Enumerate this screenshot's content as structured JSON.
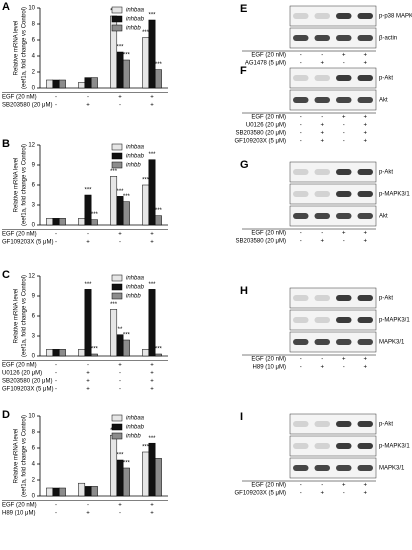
{
  "chart_data": [
    {
      "type": "bar",
      "panel": "A",
      "ylabel": [
        "Relative mRNA level",
        "(eef1a, fold change vs Control)"
      ],
      "ylim": [
        0,
        10
      ],
      "yticks": [
        0,
        2,
        4,
        6,
        8,
        10
      ],
      "series": [
        {
          "name": "inhbaa",
          "color": "#e6e6e6",
          "values": [
            1,
            0.7,
            9,
            6.3
          ],
          "significance": [
            null,
            null,
            "***",
            "***"
          ]
        },
        {
          "name": "inhbab",
          "color": "#111111",
          "values": [
            1,
            1.3,
            4.5,
            8.5
          ],
          "significance": [
            null,
            null,
            "***",
            "***"
          ]
        },
        {
          "name": "inhbb",
          "color": "#8c8c8c",
          "values": [
            1,
            1.3,
            3.5,
            2.3
          ],
          "significance": [
            null,
            null,
            "***",
            "***"
          ]
        }
      ],
      "treatments": [
        {
          "label": "EGF (20 nM)",
          "signs": [
            "-",
            "-",
            "+",
            "+"
          ]
        },
        {
          "label": "SB203580 (20 μM)",
          "signs": [
            "-",
            "+",
            "-",
            "+"
          ]
        }
      ]
    },
    {
      "type": "bar",
      "panel": "B",
      "ylabel": [
        "Relative mRNA level",
        "(eef1a, fold change vs Control)"
      ],
      "ylim": [
        0,
        12
      ],
      "yticks": [
        0,
        3,
        6,
        9,
        12
      ],
      "series": [
        {
          "name": "inhbaa",
          "color": "#e6e6e6",
          "values": [
            1,
            1,
            7.3,
            6
          ],
          "significance": [
            null,
            null,
            "***",
            "***"
          ]
        },
        {
          "name": "inhbab",
          "color": "#111111",
          "values": [
            1,
            4.5,
            4.3,
            9.8
          ],
          "significance": [
            null,
            "***",
            "***",
            "***"
          ]
        },
        {
          "name": "inhbb",
          "color": "#8c8c8c",
          "values": [
            1,
            0.8,
            3.5,
            1.4
          ],
          "significance": [
            null,
            "***",
            "***",
            "***"
          ]
        }
      ],
      "treatments": [
        {
          "label": "EGF (20 nM)",
          "signs": [
            "-",
            "-",
            "+",
            "+"
          ]
        },
        {
          "label": "GF109203X (5 μM)",
          "signs": [
            "-",
            "+",
            "-",
            "+"
          ]
        }
      ]
    },
    {
      "type": "bar",
      "panel": "C",
      "ylabel": [
        "Relative mRNA level",
        "(eef1a, fold change vs Control)"
      ],
      "ylim": [
        0,
        12
      ],
      "yticks": [
        0,
        3,
        6,
        9,
        12
      ],
      "series": [
        {
          "name": "inhbaa",
          "color": "#e6e6e6",
          "values": [
            1,
            1,
            7,
            1
          ],
          "significance": [
            null,
            null,
            "***",
            null
          ]
        },
        {
          "name": "inhbab",
          "color": "#111111",
          "values": [
            1,
            10,
            3.2,
            10
          ],
          "significance": [
            null,
            "***",
            "**",
            "***"
          ]
        },
        {
          "name": "inhbb",
          "color": "#8c8c8c",
          "values": [
            1,
            0.3,
            2.4,
            0.3
          ],
          "significance": [
            null,
            "***",
            "***",
            "***"
          ]
        }
      ],
      "treatments": [
        {
          "label": "EGF (20 nM)",
          "signs": [
            "-",
            "-",
            "+",
            "+"
          ]
        },
        {
          "label": "U0126 (20 μM)",
          "signs": [
            "-",
            "+",
            "-",
            "+"
          ]
        },
        {
          "label": "SB203580 (20 μM)",
          "signs": [
            "-",
            "+",
            "-",
            "+"
          ]
        },
        {
          "label": "GF109203X (5 μM)",
          "signs": [
            "-",
            "+",
            "-",
            "+"
          ]
        }
      ]
    },
    {
      "type": "bar",
      "panel": "D",
      "ylabel": [
        "Relative mRNA level",
        "(eef1a, fold change vs Control)"
      ],
      "ylim": [
        0,
        10
      ],
      "yticks": [
        0,
        2,
        4,
        6,
        8,
        10
      ],
      "series": [
        {
          "name": "inhbaa",
          "color": "#e6e6e6",
          "values": [
            1,
            1.6,
            7.6,
            5.5
          ],
          "significance": [
            null,
            null,
            "***",
            "***"
          ]
        },
        {
          "name": "inhbab",
          "color": "#111111",
          "values": [
            1,
            1.2,
            4.5,
            6.6
          ],
          "significance": [
            null,
            null,
            "***",
            "***"
          ]
        },
        {
          "name": "inhbb",
          "color": "#8c8c8c",
          "values": [
            1,
            1.2,
            3.5,
            4.7
          ],
          "significance": [
            null,
            null,
            "***",
            null
          ]
        }
      ],
      "treatments": [
        {
          "label": "EGF (20 nM)",
          "signs": [
            "-",
            "-",
            "+",
            "+"
          ]
        },
        {
          "label": "H89 (10 μM)",
          "signs": [
            "-",
            "+",
            "-",
            "+"
          ]
        }
      ]
    }
  ],
  "blots": [
    {
      "panel": "E",
      "rows": [
        "p-p38 MAPK",
        "β-actin"
      ],
      "treatments": [
        {
          "label": "EGF (20 nM)",
          "signs": [
            "-",
            "-",
            "+",
            "+"
          ]
        },
        {
          "label": "AG1478 (5 μM)",
          "signs": [
            "-",
            "+",
            "-",
            "+"
          ]
        }
      ]
    },
    {
      "panel": "F",
      "rows": [
        "p-Akt",
        "Akt"
      ],
      "treatments": [
        {
          "label": "EGF (20 nM)",
          "signs": [
            "-",
            "-",
            "+",
            "+"
          ]
        },
        {
          "label": "U0126 (20 μM)",
          "signs": [
            "-",
            "+",
            "-",
            "+"
          ]
        },
        {
          "label": "SB203580 (20 μM)",
          "signs": [
            "-",
            "+",
            "-",
            "+"
          ]
        },
        {
          "label": "GF109203X (5 μM)",
          "signs": [
            "-",
            "+",
            "-",
            "+"
          ]
        }
      ]
    },
    {
      "panel": "G",
      "rows": [
        "p-Akt",
        "p-MAPK3/1",
        "Akt"
      ],
      "treatments": [
        {
          "label": "EGF (20 nM)",
          "signs": [
            "-",
            "-",
            "+",
            "+"
          ]
        },
        {
          "label": "SB203580 (20 μM)",
          "signs": [
            "-",
            "+",
            "-",
            "+"
          ]
        }
      ]
    },
    {
      "panel": "H",
      "rows": [
        "p-Akt",
        "p-MAPK3/1",
        "MAPK3/1"
      ],
      "treatments": [
        {
          "label": "EGF (20 nM)",
          "signs": [
            "-",
            "-",
            "+",
            "+"
          ]
        },
        {
          "label": "H89 (10 μM)",
          "signs": [
            "-",
            "+",
            "-",
            "+"
          ]
        }
      ]
    },
    {
      "panel": "I",
      "rows": [
        "p-Akt",
        "p-MAPK3/1",
        "MAPK3/1"
      ],
      "treatments": [
        {
          "label": "EGF (20 nM)",
          "signs": [
            "-",
            "-",
            "+",
            "+"
          ]
        },
        {
          "label": "GF109203X (5 μM)",
          "signs": [
            "-",
            "+",
            "-",
            "+"
          ]
        }
      ]
    }
  ]
}
